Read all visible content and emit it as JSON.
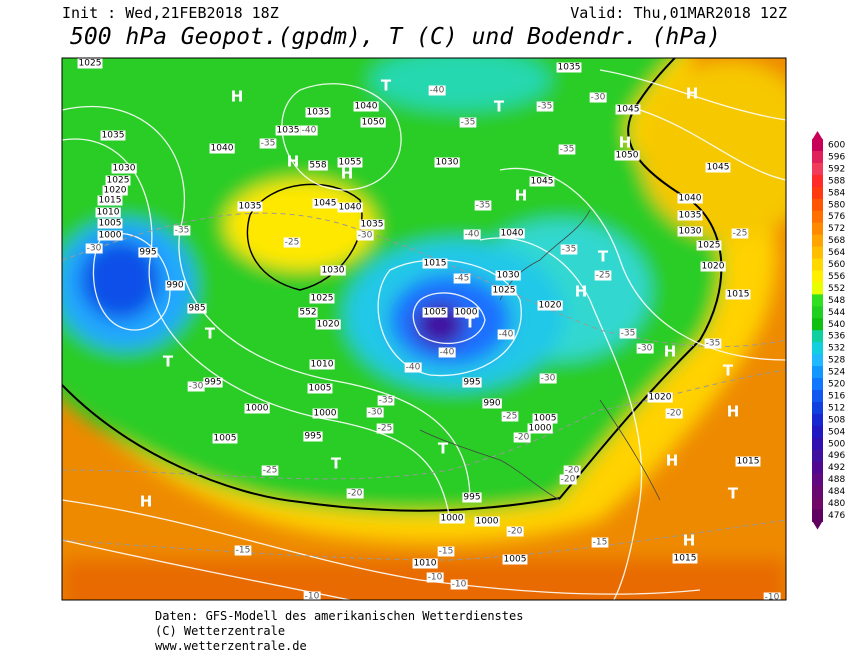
{
  "header": {
    "init": "Init : Wed,21FEB2018 18Z",
    "valid": "Valid: Thu,01MAR2018 12Z",
    "title": "500 hPa Geopot.(gpdm), T (C) und Bodendr. (hPa)"
  },
  "legend": {
    "values": [
      600,
      596,
      592,
      588,
      584,
      580,
      576,
      572,
      568,
      564,
      560,
      556,
      552,
      548,
      544,
      540,
      536,
      532,
      528,
      524,
      520,
      516,
      512,
      508,
      504,
      500,
      496,
      492,
      488,
      484,
      480,
      476
    ]
  },
  "map": {
    "pressure_labels": [
      1025,
      1035,
      1030,
      1025,
      1020,
      1015,
      1010,
      1005,
      1000,
      995,
      990,
      985,
      995,
      1000,
      1005,
      995,
      1000,
      1005,
      1010,
      1020,
      1025,
      1030,
      1035,
      1040,
      1035,
      1035,
      1040,
      1050,
      1055,
      1045,
      1040,
      1035,
      1030,
      1015,
      1005,
      1000,
      995,
      990,
      1005,
      1000,
      1025,
      1030,
      1020,
      1040,
      1045,
      1035,
      1045,
      1050,
      1045,
      1040,
      1035,
      1030,
      1025,
      1020,
      1015,
      1020,
      1015,
      1015,
      995,
      1000,
      1000,
      1005,
      1010
    ],
    "height_labels": [
      552,
      558
    ],
    "centers": [
      "H",
      "H",
      "H",
      "T",
      "T",
      "H",
      "T",
      "H",
      "T",
      "T",
      "T",
      "T",
      "T",
      "H",
      "H",
      "H",
      "T",
      "H",
      "H",
      "T",
      "H",
      "H"
    ],
    "temperature_labels": [
      -30,
      -35,
      -30,
      -25,
      -30,
      -40,
      -35,
      -40,
      -35,
      -35,
      -30,
      -35,
      -35,
      -40,
      -45,
      -40,
      -40,
      -40,
      -35,
      -30,
      -25,
      -30,
      -25,
      -20,
      -20,
      -20,
      -35,
      -30,
      -35,
      -25,
      -35,
      -25,
      -20,
      -25,
      -20,
      -15,
      -15,
      -20,
      -15,
      -10,
      -10,
      -10,
      -10
    ]
  },
  "footer": {
    "source": "Daten: GFS-Modell des amerikanischen Wetterdienstes",
    "copyright": "(C) Wetterzentrale",
    "url": "www.wetterzentrale.de"
  }
}
